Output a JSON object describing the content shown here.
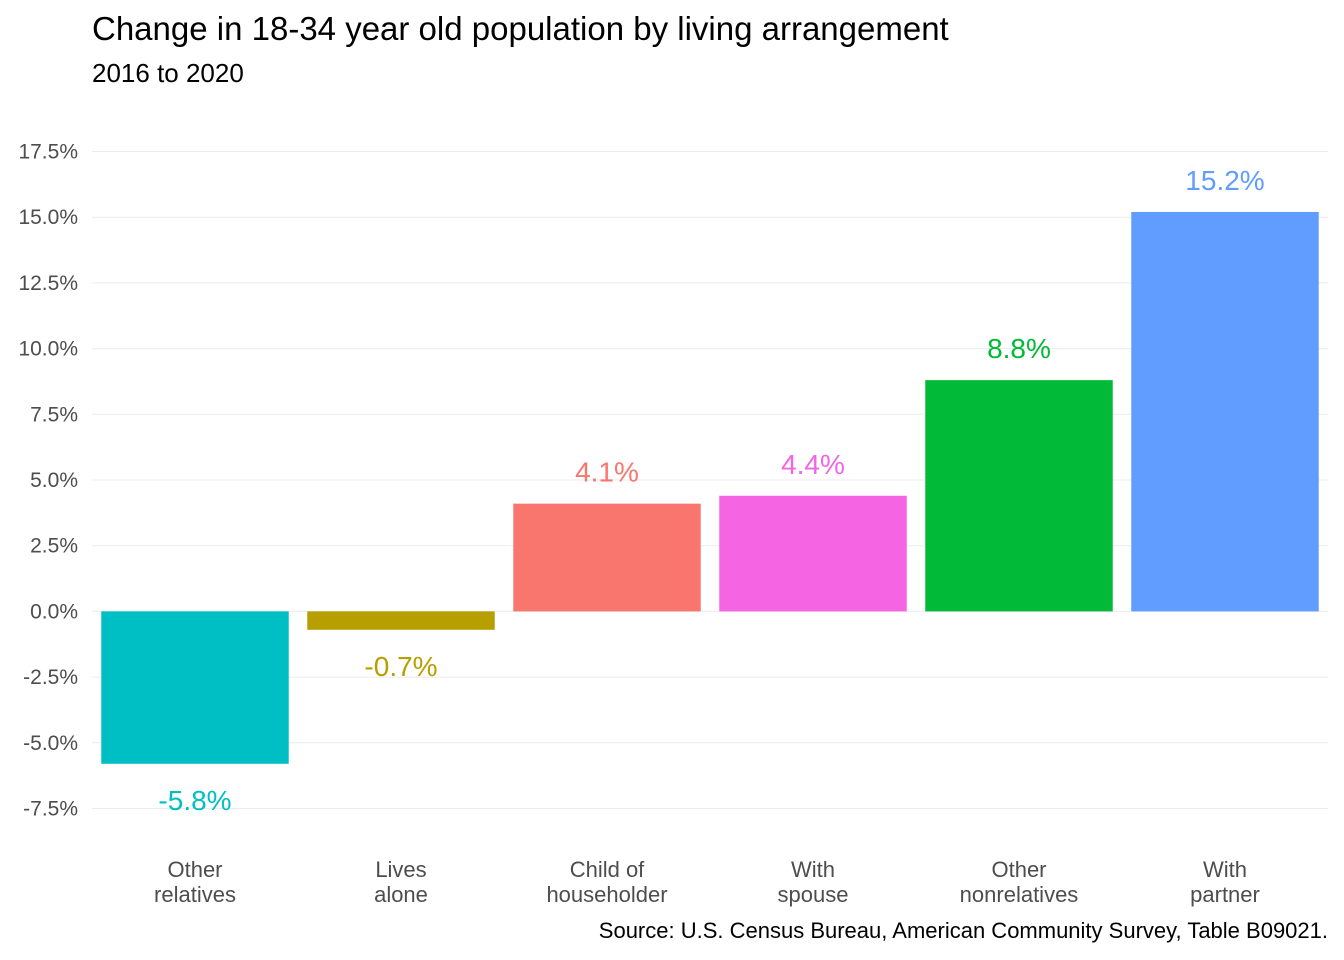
{
  "chart_data": {
    "type": "bar",
    "title": "Change in 18-34 year old population by living arrangement",
    "subtitle": "2016 to 2020",
    "caption": "Source: U.S. Census Bureau, American Community Survey, Table B09021.",
    "xlabel": "",
    "ylabel": "",
    "ylim": [
      -8.7,
      18.7
    ],
    "y_ticks": [
      -7.5,
      -5.0,
      -2.5,
      0.0,
      2.5,
      5.0,
      7.5,
      10.0,
      12.5,
      15.0,
      17.5
    ],
    "y_tick_labels": [
      "-7.5%",
      "-5.0%",
      "-2.5%",
      "0.0%",
      "2.5%",
      "5.0%",
      "7.5%",
      "10.0%",
      "12.5%",
      "15.0%",
      "17.5%"
    ],
    "grid": true,
    "legend": "none",
    "categories": [
      [
        "Other",
        "relatives"
      ],
      [
        "Lives",
        "alone"
      ],
      [
        "Child of",
        "householder"
      ],
      [
        "With",
        "spouse"
      ],
      [
        "Other",
        "nonrelatives"
      ],
      [
        "With",
        "partner"
      ]
    ],
    "values": [
      -5.8,
      -0.7,
      4.1,
      4.4,
      8.8,
      15.2
    ],
    "value_labels": [
      "-5.8%",
      "-0.7%",
      "4.1%",
      "4.4%",
      "8.8%",
      "15.2%"
    ],
    "colors": [
      "#00BFC4",
      "#B79F00",
      "#F8766D",
      "#F564E3",
      "#00BA38",
      "#619CFF"
    ]
  }
}
